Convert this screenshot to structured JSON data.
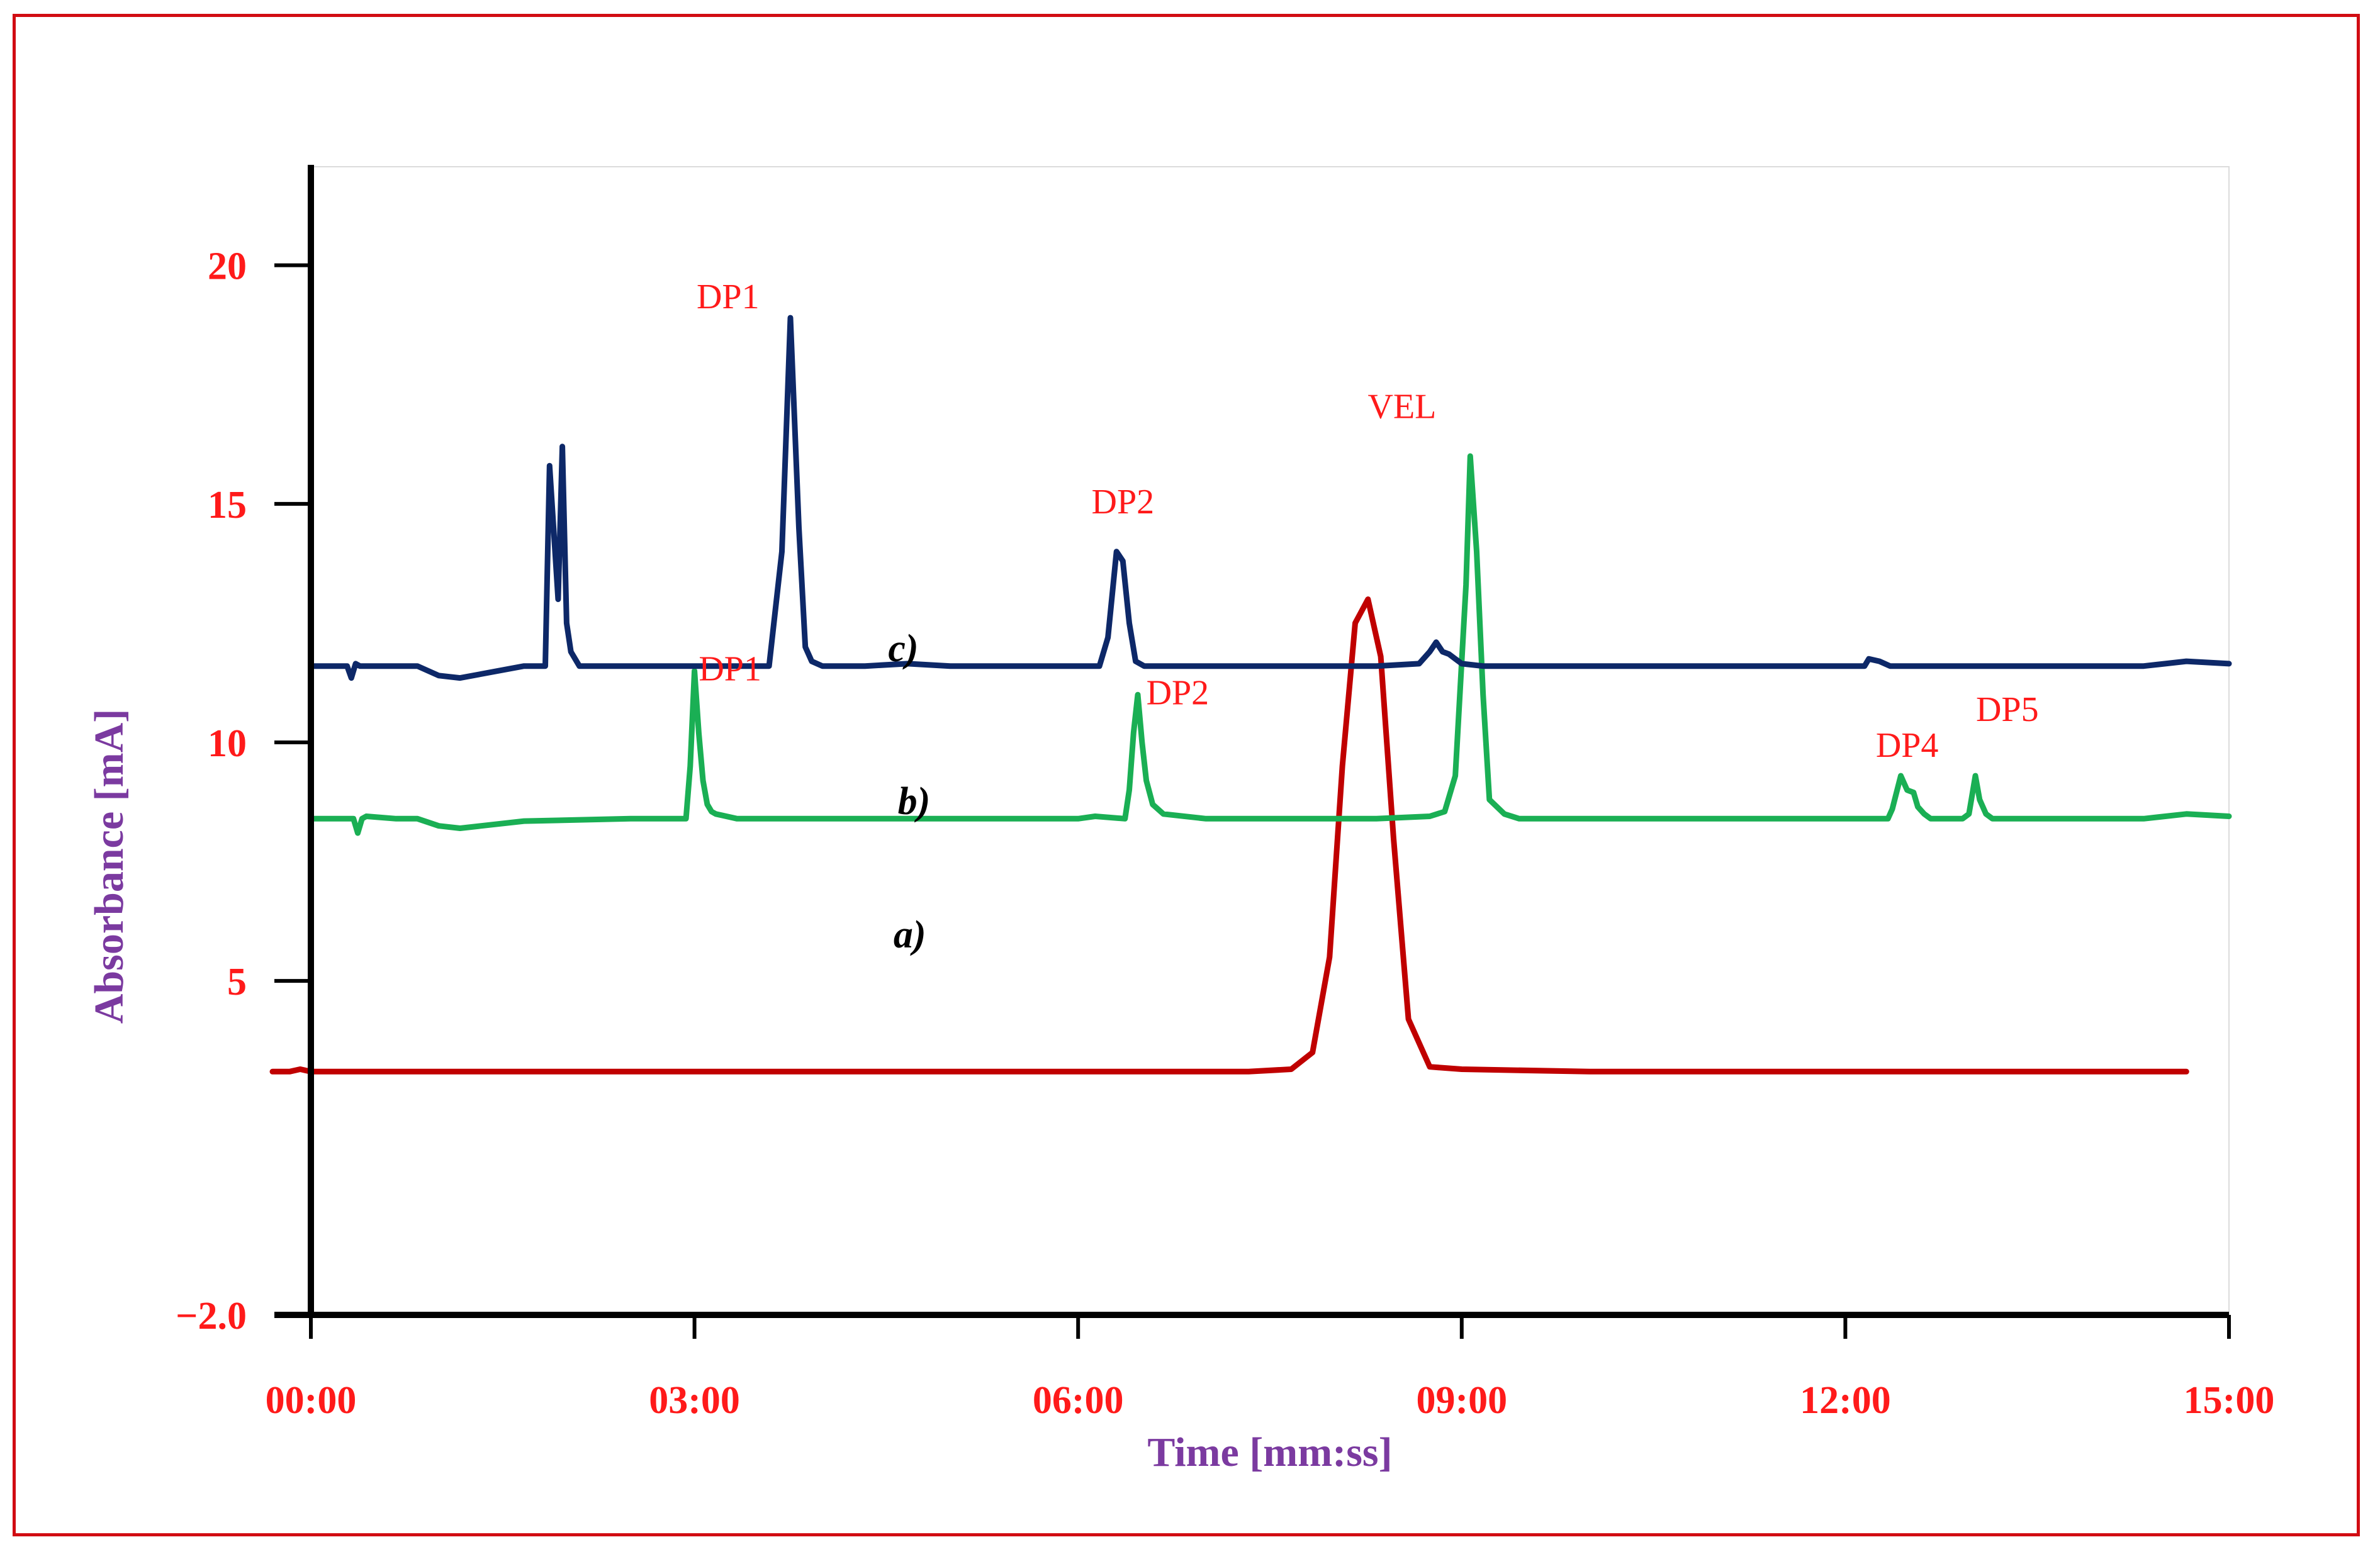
{
  "chart_data": {
    "type": "line",
    "xlabel": "Time [mm:ss]",
    "ylabel": "Absorbance [mA]",
    "xlim": [
      0,
      900
    ],
    "ylim": [
      -2,
      22
    ],
    "x_ticks": [
      {
        "v": 0,
        "label": "00:00"
      },
      {
        "v": 180,
        "label": "03:00"
      },
      {
        "v": 360,
        "label": "06:00"
      },
      {
        "v": 540,
        "label": "09:00"
      },
      {
        "v": 720,
        "label": "12:00"
      },
      {
        "v": 900,
        "label": "15:00"
      }
    ],
    "y_ticks": [
      {
        "v": -2,
        "label": "−2.0"
      },
      {
        "v": 5,
        "label": "5"
      },
      {
        "v": 10,
        "label": "10"
      },
      {
        "v": 15,
        "label": "15"
      },
      {
        "v": 20,
        "label": "20"
      }
    ],
    "grid": false,
    "series": [
      {
        "name": "a)",
        "color": "#c00000",
        "label_at": [
          281,
          5.7
        ],
        "x": [
          -18,
          -10,
          -5,
          0,
          50,
          100,
          200,
          300,
          400,
          440,
          460,
          470,
          478,
          484,
          490,
          496,
          502,
          508,
          515,
          525,
          540,
          600,
          700,
          800,
          880
        ],
        "y": [
          3.1,
          3.1,
          3.15,
          3.1,
          3.1,
          3.1,
          3.1,
          3.1,
          3.1,
          3.1,
          3.15,
          3.5,
          5.5,
          9.5,
          12.5,
          13.0,
          11.8,
          8.0,
          4.2,
          3.2,
          3.15,
          3.1,
          3.1,
          3.1,
          3.1
        ]
      },
      {
        "name": "b)",
        "color": "#1aaf54",
        "label_at": [
          283,
          8.5
        ],
        "x": [
          0,
          20,
          22,
          24,
          26,
          40,
          50,
          60,
          70,
          100,
          150,
          176,
          178,
          180,
          182,
          184,
          186,
          188,
          190,
          200,
          300,
          360,
          368,
          382,
          384,
          386,
          388,
          390,
          392,
          395,
          400,
          420,
          500,
          525,
          532,
          537,
          542,
          544,
          547,
          550,
          553,
          560,
          567,
          575,
          580,
          600,
          700,
          740,
          742,
          746,
          749,
          752,
          754,
          757,
          760,
          763,
          766,
          775,
          778,
          781,
          783,
          786,
          789,
          792,
          800,
          860,
          880,
          900
        ],
        "y": [
          8.4,
          8.4,
          8.1,
          8.4,
          8.45,
          8.4,
          8.4,
          8.25,
          8.2,
          8.35,
          8.4,
          8.4,
          9.5,
          11.5,
          10.2,
          9.2,
          8.7,
          8.55,
          8.5,
          8.4,
          8.4,
          8.4,
          8.45,
          8.4,
          9.0,
          10.2,
          11.0,
          10.0,
          9.2,
          8.7,
          8.5,
          8.4,
          8.4,
          8.45,
          8.55,
          9.3,
          13.3,
          16.0,
          14.0,
          11.0,
          8.8,
          8.5,
          8.4,
          8.4,
          8.4,
          8.4,
          8.4,
          8.4,
          8.6,
          9.3,
          9.0,
          8.95,
          8.65,
          8.5,
          8.4,
          8.4,
          8.4,
          8.4,
          8.5,
          9.3,
          8.8,
          8.5,
          8.4,
          8.4,
          8.4,
          8.4,
          8.5,
          8.45
        ]
      },
      {
        "name": "c)",
        "color": "#0d2868",
        "label_at": [
          278,
          11.7
        ],
        "x": [
          0,
          17,
          19,
          21,
          23,
          40,
          50,
          60,
          70,
          100,
          110,
          112,
          116,
          118,
          120,
          122,
          126,
          130,
          140,
          160,
          170,
          200,
          215,
          221,
          225,
          229,
          232,
          235,
          240,
          260,
          280,
          300,
          320,
          370,
          374,
          378,
          381,
          384,
          387,
          391,
          396,
          400,
          430,
          450,
          500,
          520,
          525,
          528,
          531,
          534,
          537,
          540,
          550,
          560,
          600,
          650,
          700,
          729,
          731,
          736,
          741,
          750,
          800,
          860,
          880,
          900
        ],
        "y": [
          11.6,
          11.6,
          11.35,
          11.65,
          11.6,
          11.6,
          11.6,
          11.4,
          11.35,
          11.6,
          11.6,
          15.8,
          13.0,
          16.2,
          12.5,
          11.9,
          11.6,
          11.6,
          11.6,
          11.6,
          11.6,
          11.6,
          11.6,
          14.0,
          18.9,
          14.5,
          12.0,
          11.7,
          11.6,
          11.6,
          11.65,
          11.6,
          11.6,
          11.6,
          12.2,
          14.0,
          13.8,
          12.5,
          11.7,
          11.6,
          11.6,
          11.6,
          11.6,
          11.6,
          11.6,
          11.65,
          11.9,
          12.1,
          11.9,
          11.85,
          11.75,
          11.65,
          11.6,
          11.6,
          11.6,
          11.6,
          11.6,
          11.6,
          11.75,
          11.7,
          11.6,
          11.6,
          11.6,
          11.6,
          11.7,
          11.65
        ]
      }
    ],
    "annotations": [
      {
        "text": "DP1",
        "series": "c)",
        "x": 181,
        "y": 19.1,
        "anchor": "start"
      },
      {
        "text": "DP2",
        "series": "c)",
        "x": 381,
        "y": 14.8,
        "anchor": "middle"
      },
      {
        "text": "VEL",
        "series": "b)",
        "x": 512,
        "y": 16.8,
        "anchor": "middle"
      },
      {
        "text": "DP1",
        "series": "b)",
        "x": 182,
        "y": 11.3,
        "anchor": "start"
      },
      {
        "text": "DP2",
        "series": "b)",
        "x": 392,
        "y": 10.8,
        "anchor": "start"
      },
      {
        "text": "DP4",
        "series": "b)",
        "x": 749,
        "y": 9.7,
        "anchor": "middle"
      },
      {
        "text": "DP5",
        "series": "b)",
        "x": 796,
        "y": 10.45,
        "anchor": "middle"
      }
    ]
  }
}
